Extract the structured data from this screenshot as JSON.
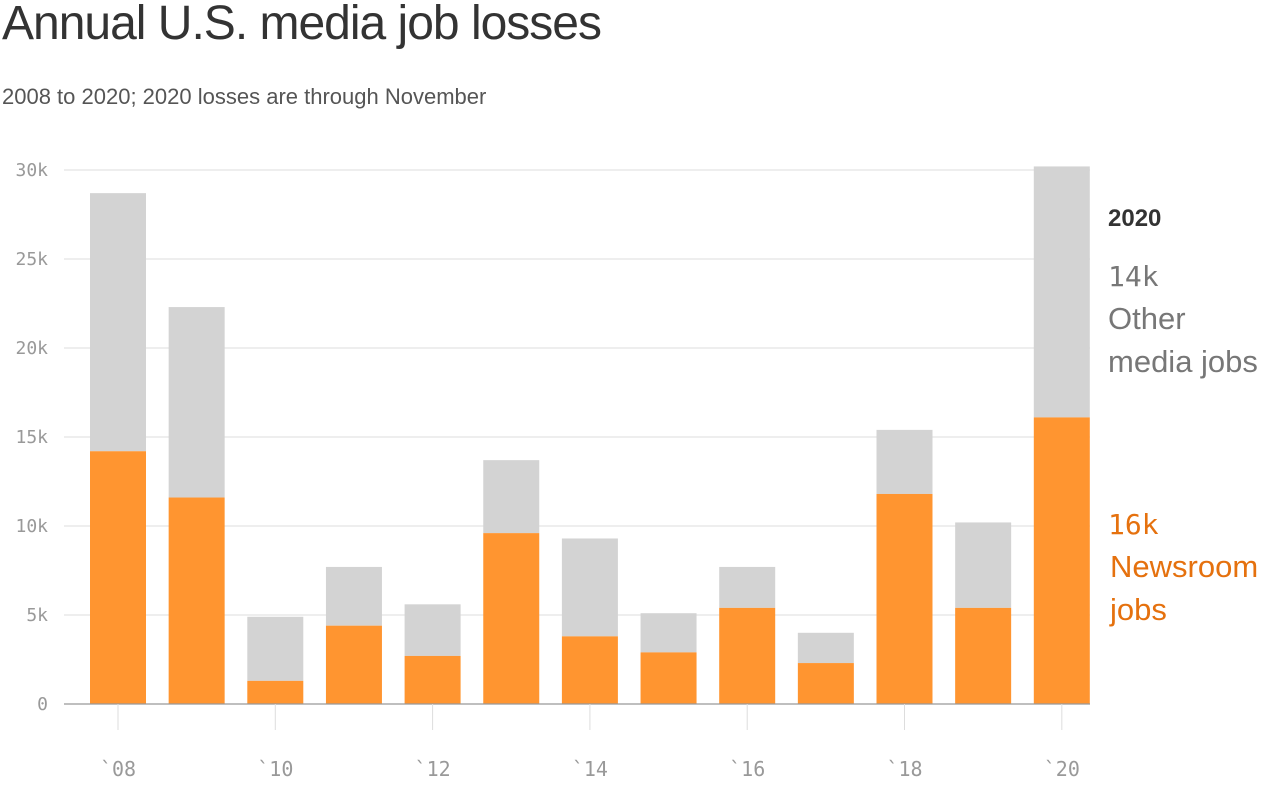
{
  "header": {
    "title": "Annual U.S. media job losses",
    "subtitle": "2008 to 2020; 2020 losses are through November"
  },
  "colors": {
    "newsroom": "#ff9530",
    "other": "#d3d3d3",
    "newsroom_text": "#e5710e",
    "other_text": "#777777",
    "grid": "#dddddd",
    "axis": "#999999"
  },
  "annotation": {
    "year": "2020",
    "other_value": "14k",
    "other_label_line1": "Other",
    "other_label_line2": "media jobs",
    "newsroom_value": "16k",
    "newsroom_label_line1": "Newsroom",
    "newsroom_label_line2": "jobs"
  },
  "chart_data": {
    "type": "bar",
    "stacked": true,
    "title": "Annual U.S. media job losses",
    "subtitle": "2008 to 2020; 2020 losses are through November",
    "categories": [
      "2008",
      "2009",
      "2010",
      "2011",
      "2012",
      "2013",
      "2014",
      "2015",
      "2016",
      "2017",
      "2018",
      "2019",
      "2020"
    ],
    "series": [
      {
        "name": "Newsroom jobs",
        "values": [
          14200,
          11600,
          1300,
          4400,
          2700,
          9600,
          3800,
          2900,
          5400,
          2300,
          11800,
          5400,
          16100
        ]
      },
      {
        "name": "Other media jobs",
        "values": [
          14500,
          10700,
          3600,
          3300,
          2900,
          4100,
          5500,
          2200,
          2300,
          1700,
          3600,
          4800,
          14100
        ]
      }
    ],
    "y_ticks": [
      {
        "value": 0,
        "label": "0"
      },
      {
        "value": 5000,
        "label": "5k"
      },
      {
        "value": 10000,
        "label": "10k"
      },
      {
        "value": 15000,
        "label": "15k"
      },
      {
        "value": 20000,
        "label": "20k"
      },
      {
        "value": 25000,
        "label": "25k"
      },
      {
        "value": 30000,
        "label": "30k"
      }
    ],
    "x_ticks": [
      {
        "category": "2008",
        "label": "`08"
      },
      {
        "category": "2010",
        "label": "`10"
      },
      {
        "category": "2012",
        "label": "`12"
      },
      {
        "category": "2014",
        "label": "`14"
      },
      {
        "category": "2016",
        "label": "`16"
      },
      {
        "category": "2018",
        "label": "`18"
      },
      {
        "category": "2020",
        "label": "`20"
      }
    ],
    "ylim": [
      0,
      30000
    ],
    "grid": true
  }
}
